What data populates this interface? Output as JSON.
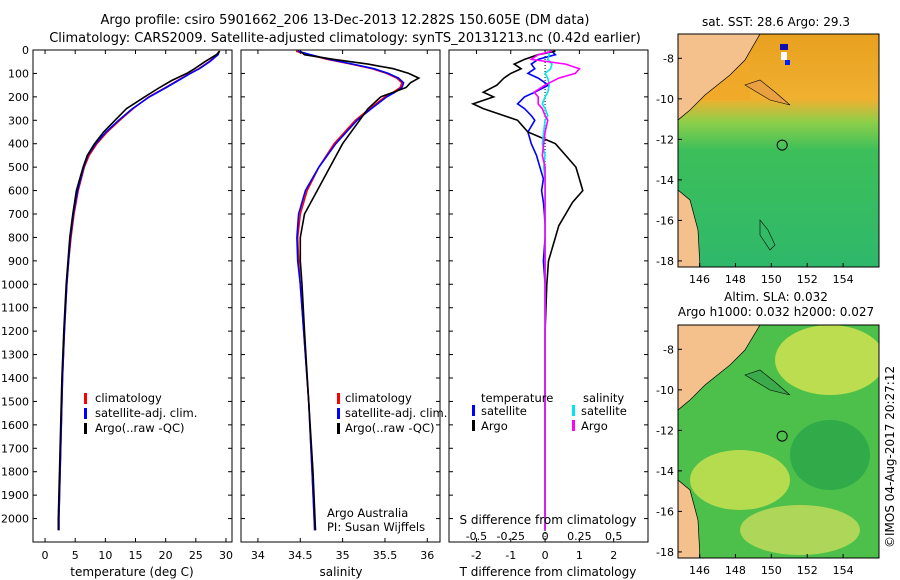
{
  "header": {
    "line1": "Argo profile: csiro 5901662_206 13-Dec-2013 12.282S 150.605E (DM data)",
    "line2": "Climatology: CARS2009. Satellite-adjusted climatology: synTS_20131213.nc (0.42d earlier)"
  },
  "colors": {
    "climatology": "#ff0000",
    "satellite": "#0000ff",
    "argo": "#000000",
    "sat_sal": "#00e5ee",
    "argo_sal": "#ff00ff"
  },
  "chart_data": [
    {
      "id": "temperature",
      "type": "line",
      "xlabel": "temperature (deg C)",
      "ylabel": "",
      "xlim": [
        -2,
        31
      ],
      "ylim": [
        2100,
        0
      ],
      "xticks": [
        0,
        5,
        10,
        15,
        20,
        25,
        30
      ],
      "yticks": [
        0,
        100,
        200,
        300,
        400,
        500,
        600,
        700,
        800,
        900,
        1000,
        1100,
        1200,
        1300,
        1400,
        1500,
        1600,
        1700,
        1800,
        1900,
        2000
      ],
      "legend": [
        "climatology",
        "satellite-adj. clim.",
        "Argo(..raw -QC)"
      ],
      "depth": [
        5,
        20,
        50,
        80,
        100,
        130,
        160,
        200,
        250,
        300,
        350,
        400,
        450,
        500,
        600,
        700,
        800,
        900,
        1000,
        1200,
        1400,
        1600,
        1800,
        2000,
        2050
      ],
      "series": [
        {
          "name": "climatology",
          "color": "#ff0000",
          "values": [
            28.8,
            28.6,
            27.2,
            25.5,
            24.0,
            22.0,
            20.0,
            17.2,
            14.6,
            12.4,
            10.3,
            8.6,
            7.3,
            6.5,
            5.5,
            4.8,
            4.3,
            3.9,
            3.6,
            3.2,
            2.9,
            2.7,
            2.5,
            2.3,
            2.3
          ]
        },
        {
          "name": "satellite-adj. clim.",
          "color": "#0000ff",
          "values": [
            28.9,
            28.7,
            27.3,
            25.6,
            24.1,
            22.1,
            20.1,
            17.3,
            14.5,
            12.2,
            10.1,
            8.4,
            7.1,
            6.4,
            5.4,
            4.7,
            4.2,
            3.9,
            3.6,
            3.2,
            2.9,
            2.7,
            2.5,
            2.3,
            2.3
          ]
        },
        {
          "name": "Argo(..raw -QC)",
          "color": "#000000",
          "values": [
            29.0,
            28.4,
            26.5,
            24.8,
            23.5,
            21.0,
            19.0,
            16.5,
            13.5,
            11.6,
            9.7,
            8.2,
            7.0,
            6.3,
            5.2,
            4.6,
            4.1,
            3.8,
            3.5,
            3.1,
            2.8,
            2.6,
            2.4,
            2.2,
            2.2
          ]
        }
      ]
    },
    {
      "id": "salinity",
      "type": "line",
      "xlabel": "salinity",
      "ylabel": "",
      "xlim": [
        33.8,
        36.15
      ],
      "ylim": [
        2100,
        0
      ],
      "xticks": [
        34,
        34.5,
        35,
        35.5,
        36
      ],
      "xticklabels": [
        "34",
        "34.5",
        "35",
        "35.5",
        "36"
      ],
      "legend": [
        "climatology",
        "satellite-adj. clim.",
        "Argo(..raw -QC)"
      ],
      "credit1": "Argo Australia",
      "credit2": "PI: Susan Wijffels",
      "depth": [
        5,
        20,
        40,
        60,
        80,
        100,
        120,
        140,
        160,
        180,
        200,
        250,
        300,
        400,
        500,
        600,
        700,
        800,
        900,
        1000,
        1200,
        1500,
        1800,
        2050
      ],
      "series": [
        {
          "name": "climatology",
          "color": "#ff0000",
          "values": [
            34.45,
            34.6,
            34.82,
            35.1,
            35.35,
            35.52,
            35.64,
            35.7,
            35.68,
            35.6,
            35.5,
            35.32,
            35.15,
            34.9,
            34.72,
            34.58,
            34.5,
            34.47,
            34.48,
            34.5,
            34.54,
            34.6,
            34.64,
            34.67
          ]
        },
        {
          "name": "satellite-adj. clim.",
          "color": "#0000ff",
          "values": [
            34.47,
            34.62,
            34.84,
            35.12,
            35.37,
            35.54,
            35.66,
            35.72,
            35.7,
            35.62,
            35.52,
            35.34,
            35.17,
            34.92,
            34.72,
            34.56,
            34.48,
            34.46,
            34.47,
            34.5,
            34.54,
            34.6,
            34.64,
            34.67
          ]
        },
        {
          "name": "Argo(..raw -QC)",
          "color": "#000000",
          "values": [
            34.5,
            34.55,
            34.9,
            35.3,
            35.6,
            35.78,
            35.9,
            35.8,
            35.75,
            35.6,
            35.45,
            35.3,
            35.2,
            35.0,
            34.85,
            34.7,
            34.55,
            34.5,
            34.5,
            34.52,
            34.55,
            34.6,
            34.65,
            34.68
          ]
        }
      ]
    },
    {
      "id": "difference",
      "type": "line",
      "xlabel": "T difference from climatology",
      "xlabel2": "S difference from climatology",
      "xlim": [
        -2.8,
        3.0
      ],
      "ylim": [
        2100,
        0
      ],
      "xticks": [
        -2,
        -1,
        0,
        1,
        2
      ],
      "xticklabels": [
        "-2",
        "-1",
        "0",
        "1",
        "2"
      ],
      "sticks": [
        -0.5,
        -0.25,
        0,
        0.25,
        0.5
      ],
      "sticklabels": [
        "-0.5",
        "-0.25",
        "0",
        "0.25",
        "0.5"
      ],
      "s_scale": 4,
      "legend_t_title": "temperature",
      "legend_s_title": "salinity",
      "legend_t": [
        "satellite",
        "Argo"
      ],
      "legend_s": [
        "satellite",
        "Argo"
      ],
      "depth": [
        5,
        20,
        40,
        60,
        80,
        100,
        120,
        150,
        180,
        200,
        230,
        250,
        280,
        300,
        350,
        400,
        450,
        500,
        550,
        600,
        650,
        700,
        750,
        800,
        900,
        1000,
        1200,
        1500,
        1800,
        2050
      ],
      "series": [
        {
          "name": "T satellite",
          "color": "#0000ff",
          "values": [
            0.2,
            0.3,
            -0.2,
            -0.4,
            -0.3,
            -0.5,
            -0.2,
            0.1,
            -0.3,
            -0.6,
            -0.8,
            -0.6,
            -0.4,
            -0.3,
            -0.5,
            -0.4,
            -0.25,
            -0.15,
            -0.05,
            -0.1,
            -0.05,
            -0.02,
            0.0,
            0.0,
            -0.05,
            0.0,
            0.0,
            0.0,
            0.0,
            0.0
          ]
        },
        {
          "name": "T Argo",
          "color": "#000000",
          "values": [
            0.3,
            -0.2,
            -0.6,
            -0.9,
            -0.7,
            -1.0,
            -1.2,
            -1.4,
            -1.8,
            -1.5,
            -2.1,
            -1.8,
            -1.2,
            -0.8,
            -0.5,
            0.3,
            0.6,
            0.9,
            1.0,
            1.1,
            0.8,
            0.6,
            0.4,
            0.3,
            0.1,
            0.05,
            0.0,
            0.0,
            0.0,
            0.0
          ]
        },
        {
          "name": "S satellite",
          "color": "#00e5ee",
          "values": [
            0.02,
            0.03,
            0.02,
            0.05,
            0.04,
            0.0,
            0.02,
            0.03,
            0.02,
            0.0,
            -0.02,
            0.0,
            0.02,
            0.0,
            -0.01,
            -0.02,
            0.0,
            -0.01,
            0.0,
            0.0,
            0.0,
            0.0,
            0.0,
            0.0,
            0.0,
            0.0,
            0.0,
            0.0,
            0.0,
            0.0
          ]
        },
        {
          "name": "S Argo",
          "color": "#ff00ff",
          "values": [
            0.05,
            -0.05,
            -0.1,
            0.15,
            0.25,
            0.22,
            0.1,
            0.0,
            -0.08,
            -0.05,
            -0.05,
            -0.02,
            0.0,
            0.02,
            0.0,
            -0.01,
            -0.02,
            0.0,
            0.0,
            0.0,
            0.0,
            0.0,
            0.0,
            0.0,
            0.0,
            0.0,
            0.0,
            0.0,
            0.0,
            0.0
          ]
        }
      ]
    },
    {
      "id": "map_sst",
      "type": "heatmap",
      "title": "sat. SST: 28.6  Argo: 29.3",
      "xlim": [
        144.8,
        156.0
      ],
      "ylim": [
        -18.3,
        -6.8
      ],
      "xticks": [
        146,
        148,
        150,
        152,
        154
      ],
      "yticks": [
        -8,
        -10,
        -12,
        -14,
        -16,
        -18
      ],
      "argo_position": {
        "lon": 150.605,
        "lat": -12.282
      }
    },
    {
      "id": "map_sla",
      "type": "heatmap",
      "title": "Altim. SLA: 0.032",
      "title2": "Argo h1000: 0.032  h2000: 0.027",
      "xlim": [
        144.8,
        156.0
      ],
      "ylim": [
        -18.3,
        -6.8
      ],
      "xticks": [
        146,
        148,
        150,
        152,
        154
      ],
      "yticks": [
        -8,
        -10,
        -12,
        -14,
        -16,
        -18
      ],
      "argo_position": {
        "lon": 150.605,
        "lat": -12.282
      }
    }
  ],
  "footer": {
    "stamp": "©IMOS 04-Aug-2017 20:27:12"
  }
}
